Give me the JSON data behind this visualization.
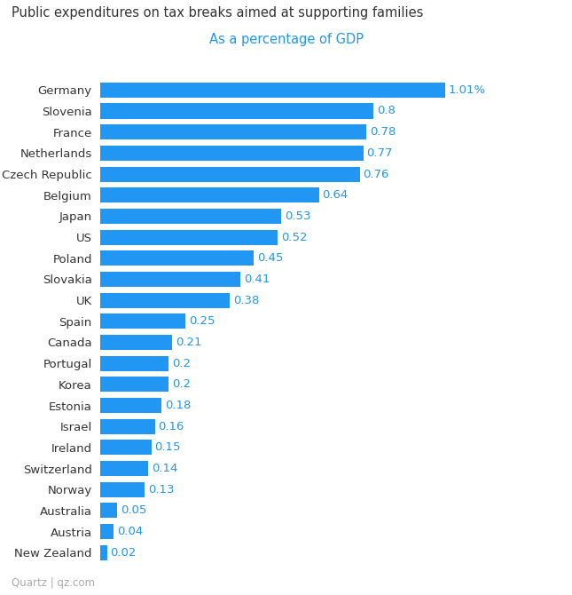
{
  "title": "Public expenditures on tax breaks aimed at supporting families",
  "subtitle": "As a percentage of GDP",
  "footer": "Quartz | qz.com",
  "bar_color": "#2196F3",
  "title_color": "#333333",
  "subtitle_color": "#2196F3",
  "footer_color": "#aaaaaa",
  "label_color": "#2196F3",
  "country_color": "#333333",
  "background_color": "#ffffff",
  "categories": [
    "Germany",
    "Slovenia",
    "France",
    "Netherlands",
    "Czech Republic",
    "Belgium",
    "Japan",
    "US",
    "Poland",
    "Slovakia",
    "UK",
    "Spain",
    "Canada",
    "Portugal",
    "Korea",
    "Estonia",
    "Israel",
    "Ireland",
    "Switzerland",
    "Norway",
    "Australia",
    "Austria",
    "New Zealand"
  ],
  "values": [
    1.01,
    0.8,
    0.78,
    0.77,
    0.76,
    0.64,
    0.53,
    0.52,
    0.45,
    0.41,
    0.38,
    0.25,
    0.21,
    0.2,
    0.2,
    0.18,
    0.16,
    0.15,
    0.14,
    0.13,
    0.05,
    0.04,
    0.02
  ],
  "value_labels": [
    "1.01%",
    "0.8",
    "0.78",
    "0.77",
    "0.76",
    "0.64",
    "0.53",
    "0.52",
    "0.45",
    "0.41",
    "0.38",
    "0.25",
    "0.21",
    "0.2",
    "0.2",
    "0.18",
    "0.16",
    "0.15",
    "0.14",
    "0.13",
    "0.05",
    "0.04",
    "0.02"
  ],
  "xlim": [
    0,
    1.18
  ],
  "bar_height": 0.72,
  "title_fontsize": 10.5,
  "subtitle_fontsize": 10.5,
  "label_fontsize": 9.5,
  "country_fontsize": 9.5,
  "footer_fontsize": 8.5
}
